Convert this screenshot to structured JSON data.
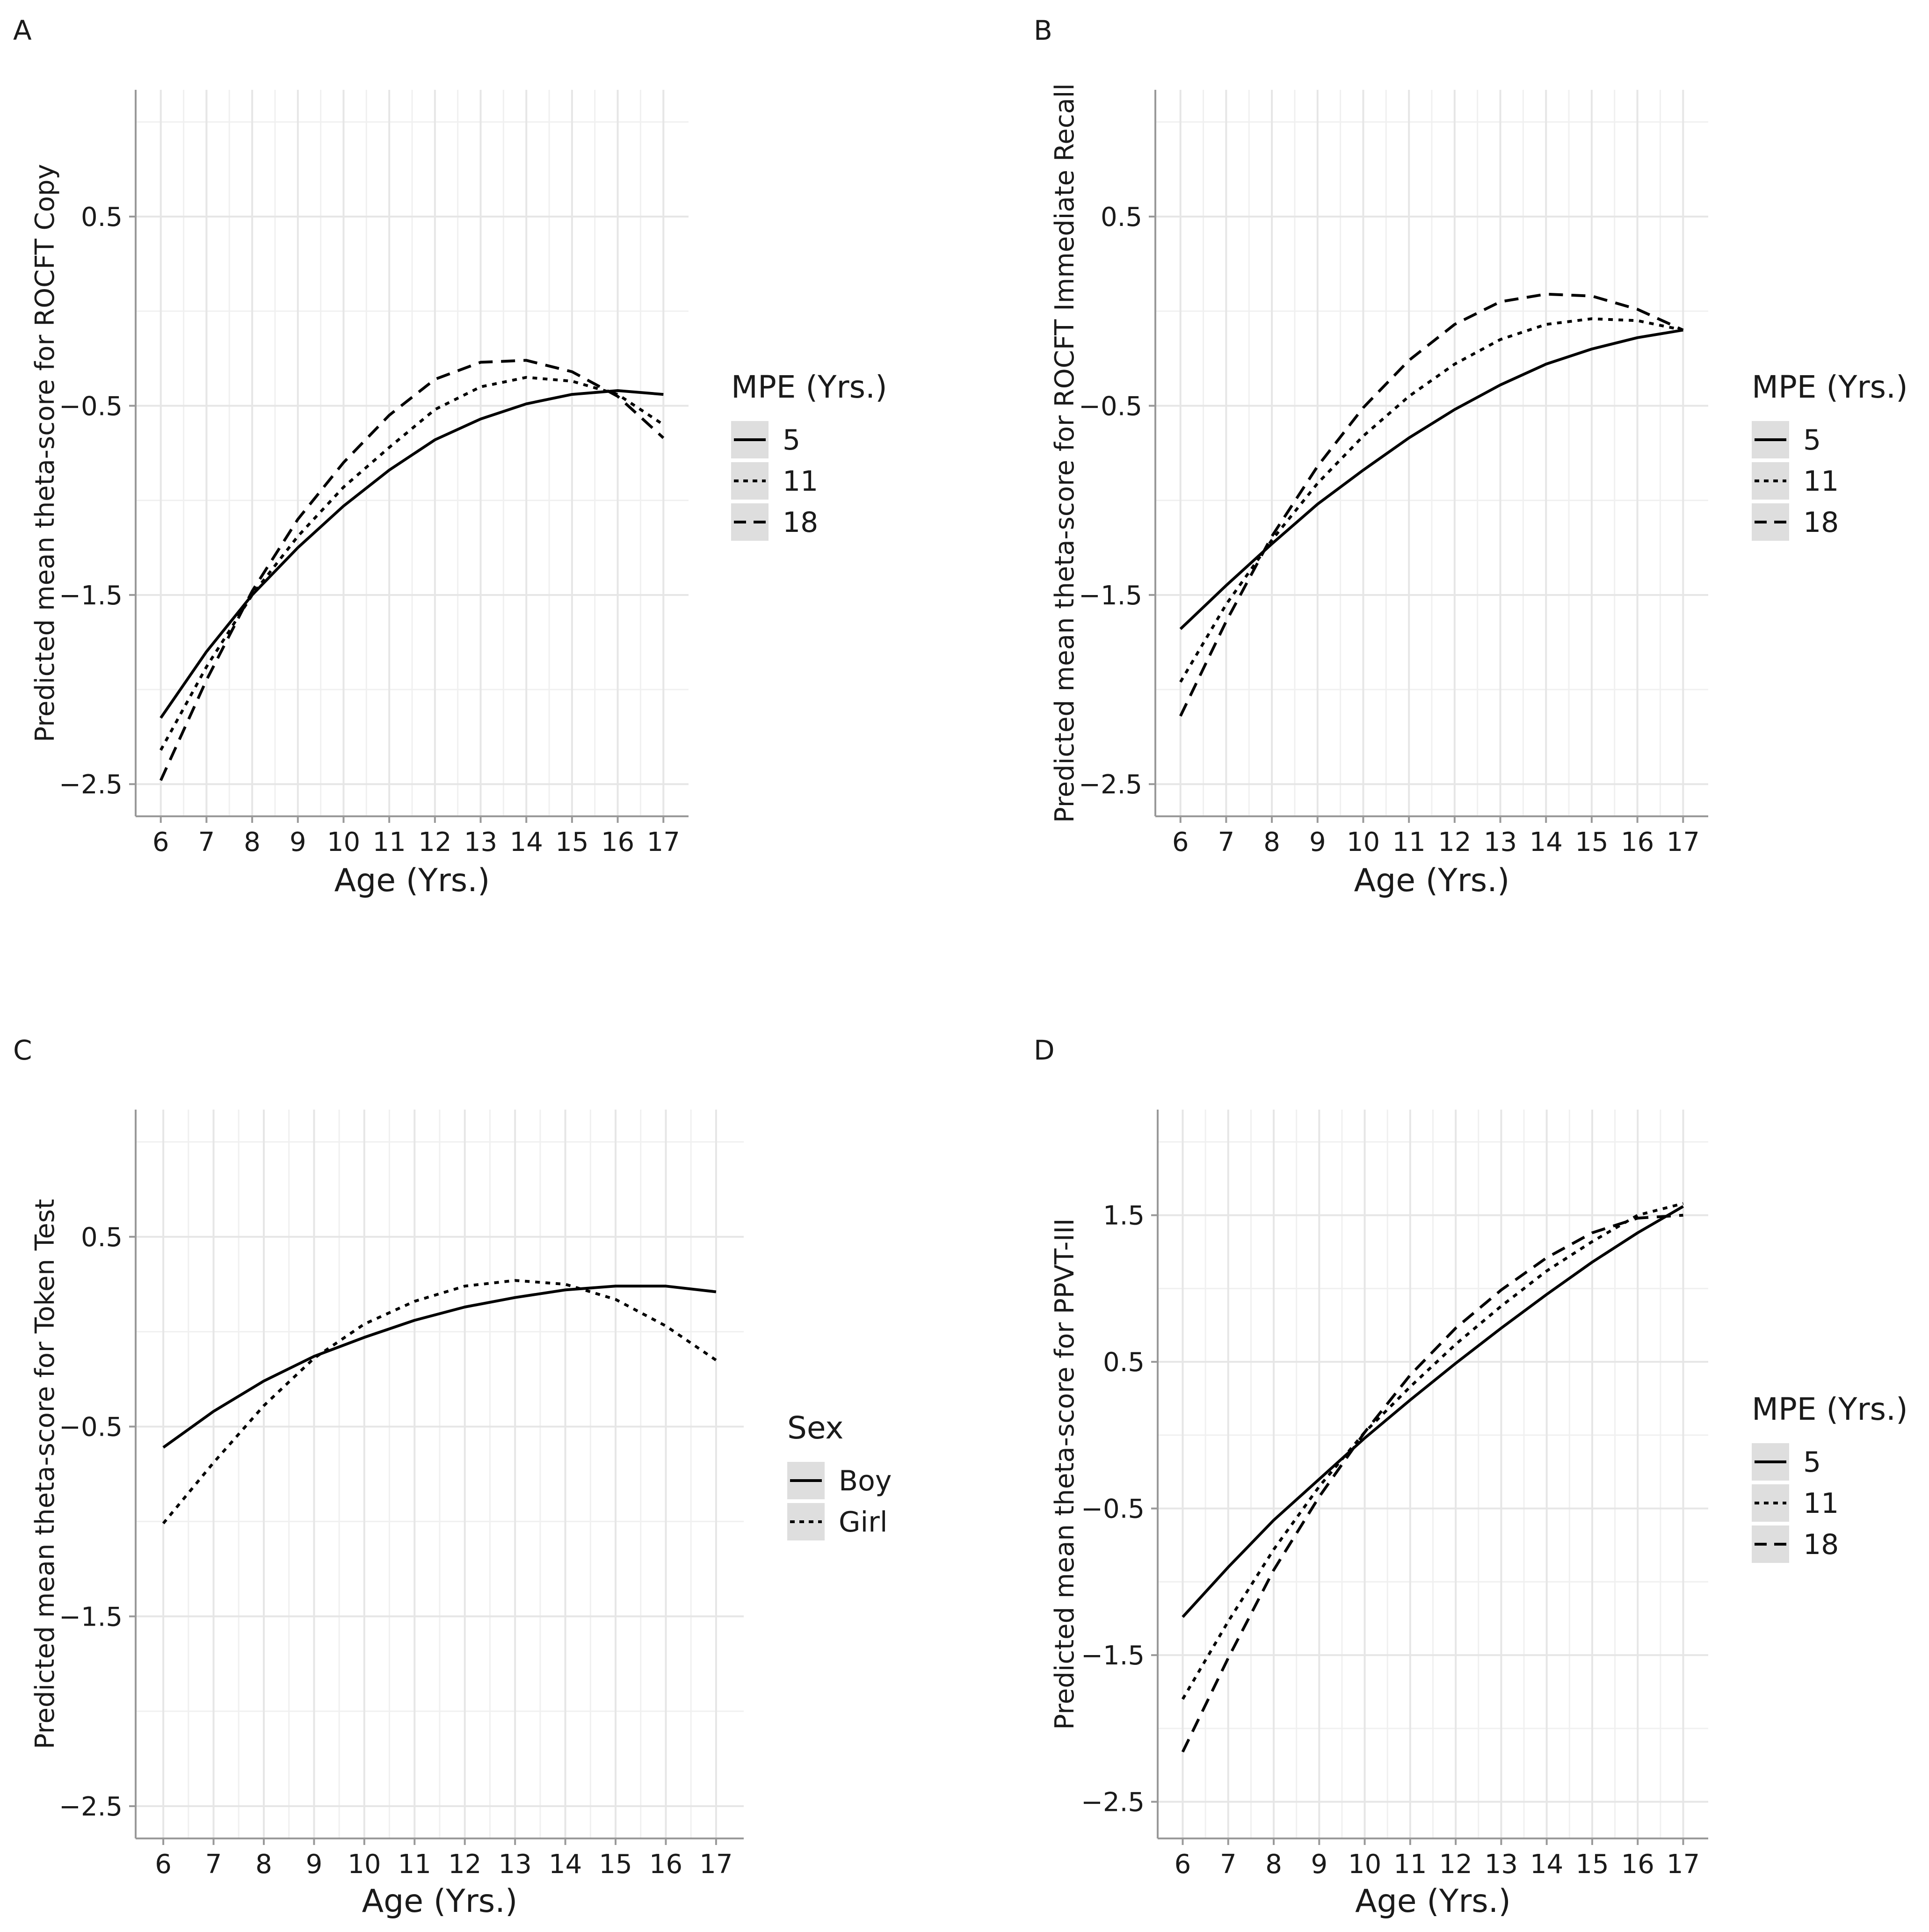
{
  "chart_data": [
    {
      "panel": "A",
      "type": "line",
      "xlabel": "Age (Yrs.)",
      "ylabel": "Predicted mean theta-score for ROCFT Copy",
      "xticks": [
        6,
        7,
        8,
        9,
        10,
        11,
        12,
        13,
        14,
        15,
        16,
        17
      ],
      "yticks": [
        0.5,
        -0.5,
        -1.5,
        -2.5
      ],
      "xlim": [
        5.45,
        17.55
      ],
      "ylim": [
        -2.67,
        1.17
      ],
      "legend_title": "MPE (Yrs.)",
      "series": [
        {
          "name": "5",
          "dash": "solid",
          "x": [
            6,
            7,
            8,
            9,
            10,
            11,
            12,
            13,
            14,
            15,
            16,
            17
          ],
          "y": [
            -2.15,
            -1.8,
            -1.5,
            -1.25,
            -1.03,
            -0.84,
            -0.68,
            -0.57,
            -0.49,
            -0.44,
            -0.42,
            -0.44
          ]
        },
        {
          "name": "11",
          "dash": "dotted",
          "x": [
            6,
            7,
            8,
            9,
            10,
            11,
            12,
            13,
            14,
            15,
            16,
            17
          ],
          "y": [
            -2.32,
            -1.88,
            -1.5,
            -1.19,
            -0.93,
            -0.72,
            -0.52,
            -0.4,
            -0.35,
            -0.37,
            -0.44,
            -0.6
          ]
        },
        {
          "name": "18",
          "dash": "dashed",
          "x": [
            6,
            7,
            8,
            9,
            10,
            11,
            12,
            13,
            14,
            15,
            16,
            17
          ],
          "y": [
            -2.48,
            -1.95,
            -1.48,
            -1.1,
            -0.8,
            -0.55,
            -0.36,
            -0.27,
            -0.26,
            -0.32,
            -0.45,
            -0.67
          ]
        }
      ]
    },
    {
      "panel": "B",
      "type": "line",
      "xlabel": "Age (Yrs.)",
      "ylabel": "Predicted mean theta-score for ROCFT Immediate Recall",
      "xticks": [
        6,
        7,
        8,
        9,
        10,
        11,
        12,
        13,
        14,
        15,
        16,
        17
      ],
      "yticks": [
        0.5,
        -0.5,
        -1.5,
        -2.5
      ],
      "xlim": [
        5.45,
        17.55
      ],
      "ylim": [
        -2.67,
        1.17
      ],
      "legend_title": "MPE (Yrs.)",
      "series": [
        {
          "name": "5",
          "dash": "solid",
          "x": [
            6,
            7,
            8,
            9,
            10,
            11,
            12,
            13,
            14,
            15,
            16,
            17
          ],
          "y": [
            -1.68,
            -1.45,
            -1.23,
            -1.02,
            -0.84,
            -0.67,
            -0.52,
            -0.39,
            -0.28,
            -0.2,
            -0.14,
            -0.1
          ]
        },
        {
          "name": "11",
          "dash": "dotted",
          "x": [
            6,
            7,
            8,
            9,
            10,
            11,
            12,
            13,
            14,
            15,
            16,
            17
          ],
          "y": [
            -1.96,
            -1.55,
            -1.21,
            -0.91,
            -0.66,
            -0.45,
            -0.28,
            -0.15,
            -0.07,
            -0.04,
            -0.05,
            -0.1
          ]
        },
        {
          "name": "18",
          "dash": "dashed",
          "x": [
            6,
            7,
            8,
            9,
            10,
            11,
            12,
            13,
            14,
            15,
            16,
            17
          ],
          "y": [
            -2.14,
            -1.64,
            -1.19,
            -0.82,
            -0.51,
            -0.26,
            -0.07,
            0.05,
            0.09,
            0.08,
            0.01,
            -0.1
          ]
        }
      ]
    },
    {
      "panel": "C",
      "type": "line",
      "xlabel": "Age (Yrs.)",
      "ylabel": "Predicted mean theta-score for Token Test",
      "xticks": [
        6,
        7,
        8,
        9,
        10,
        11,
        12,
        13,
        14,
        15,
        16,
        17
      ],
      "yticks": [
        0.5,
        -0.5,
        -1.5,
        -2.5
      ],
      "xlim": [
        5.45,
        17.55
      ],
      "ylim": [
        -2.67,
        1.17
      ],
      "legend_title": "Sex",
      "series": [
        {
          "name": "Boy",
          "dash": "solid",
          "x": [
            6,
            7,
            8,
            9,
            10,
            11,
            12,
            13,
            14,
            15,
            16,
            17
          ],
          "y": [
            -0.61,
            -0.42,
            -0.26,
            -0.13,
            -0.03,
            0.06,
            0.13,
            0.18,
            0.22,
            0.24,
            0.24,
            0.21
          ]
        },
        {
          "name": "Girl",
          "dash": "dotted",
          "x": [
            6,
            7,
            8,
            9,
            10,
            11,
            12,
            13,
            14,
            15,
            16,
            17
          ],
          "y": [
            -1.01,
            -0.69,
            -0.39,
            -0.14,
            0.04,
            0.16,
            0.24,
            0.27,
            0.25,
            0.17,
            0.03,
            -0.15
          ]
        }
      ]
    },
    {
      "panel": "D",
      "type": "line",
      "xlabel": "Age (Yrs.)",
      "ylabel": "Predicted mean theta-score for PPVT-III",
      "xticks": [
        6,
        7,
        8,
        9,
        10,
        11,
        12,
        13,
        14,
        15,
        16,
        17
      ],
      "yticks": [
        1.5,
        0.5,
        -0.5,
        -1.5,
        -2.5
      ],
      "xlim": [
        5.45,
        17.55
      ],
      "ylim": [
        -2.75,
        2.22
      ],
      "legend_title": "MPE (Yrs.)",
      "series": [
        {
          "name": "5",
          "dash": "solid",
          "x": [
            6,
            7,
            8,
            9,
            10,
            11,
            12,
            13,
            14,
            15,
            16,
            17
          ],
          "y": [
            -1.24,
            -0.9,
            -0.58,
            -0.3,
            -0.02,
            0.24,
            0.49,
            0.73,
            0.96,
            1.18,
            1.38,
            1.56
          ]
        },
        {
          "name": "11",
          "dash": "dotted",
          "x": [
            6,
            7,
            8,
            9,
            10,
            11,
            12,
            13,
            14,
            15,
            16,
            17
          ],
          "y": [
            -1.8,
            -1.27,
            -0.78,
            -0.35,
            0.02,
            0.33,
            0.62,
            0.88,
            1.12,
            1.32,
            1.5,
            1.58
          ]
        },
        {
          "name": "18",
          "dash": "dashed",
          "x": [
            6,
            7,
            8,
            9,
            10,
            11,
            12,
            13,
            14,
            15,
            16,
            17
          ],
          "y": [
            -2.16,
            -1.52,
            -0.92,
            -0.42,
            0.02,
            0.41,
            0.73,
            0.99,
            1.21,
            1.38,
            1.48,
            1.5
          ]
        }
      ]
    }
  ]
}
